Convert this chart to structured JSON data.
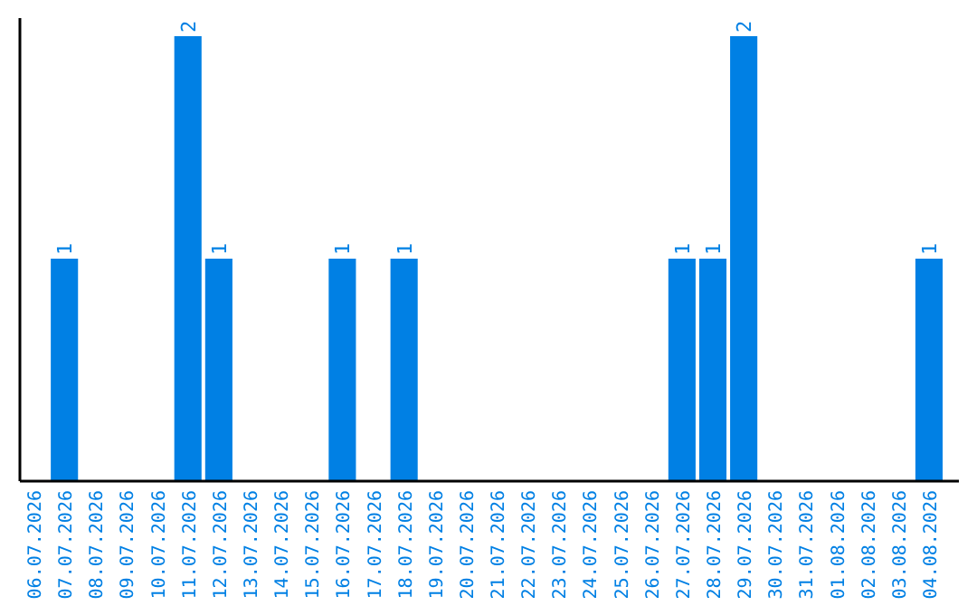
{
  "chart_data": {
    "type": "bar",
    "categories": [
      "06.07.2026",
      "07.07.2026",
      "08.07.2026",
      "09.07.2026",
      "10.07.2026",
      "11.07.2026",
      "12.07.2026",
      "13.07.2026",
      "14.07.2026",
      "15.07.2026",
      "16.07.2026",
      "17.07.2026",
      "18.07.2026",
      "19.07.2026",
      "20.07.2026",
      "21.07.2026",
      "22.07.2026",
      "23.07.2026",
      "24.07.2026",
      "25.07.2026",
      "26.07.2026",
      "27.07.2026",
      "28.07.2026",
      "29.07.2026",
      "30.07.2026",
      "31.07.2026",
      "01.08.2026",
      "02.08.2026",
      "03.08.2026",
      "04.08.2026"
    ],
    "values": [
      0,
      1,
      0,
      0,
      0,
      2,
      1,
      0,
      0,
      0,
      1,
      0,
      1,
      0,
      0,
      0,
      0,
      0,
      0,
      0,
      0,
      1,
      1,
      2,
      0,
      0,
      0,
      0,
      0,
      1
    ],
    "value_labels": [
      null,
      "1",
      null,
      null,
      null,
      "2",
      "1",
      null,
      null,
      null,
      "1",
      null,
      "1",
      null,
      null,
      null,
      null,
      null,
      null,
      null,
      null,
      "1",
      "1",
      "2",
      null,
      null,
      null,
      null,
      null,
      "1"
    ],
    "color": "#0080e4",
    "tick_labels": "x"
  }
}
